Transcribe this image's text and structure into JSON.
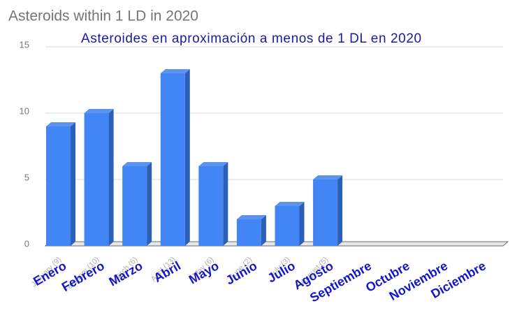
{
  "chart_data": {
    "type": "bar3d",
    "title": "Asteroids within 1 LD in 2020",
    "subtitle": "Asteroides en aproximación a menos de 1 DL en 2020",
    "categories": [
      "Enero",
      "Febrero",
      "Marzo",
      "Abril",
      "Mayo",
      "Junio",
      "Julio",
      "Agosto",
      "Septiembre",
      "Octubre",
      "Noviembre",
      "Diciembre"
    ],
    "sub_labels": [
      "January (9)",
      "February (10)",
      "March (6)",
      "April (13)",
      "May (6)",
      "June (2)",
      "July (3)",
      "August (5)",
      null,
      null,
      null,
      null
    ],
    "values": [
      9,
      10,
      6,
      13,
      6,
      2,
      3,
      5,
      null,
      null,
      null,
      null
    ],
    "color": "#4285f4",
    "ylim": [
      0,
      15
    ],
    "yticks": [
      0,
      5,
      10,
      15
    ],
    "grid": true
  }
}
